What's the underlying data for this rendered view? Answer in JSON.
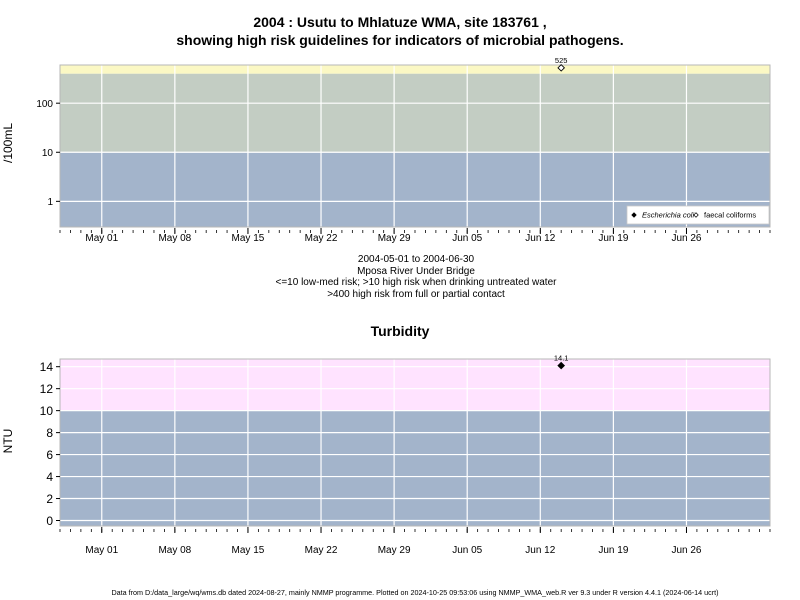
{
  "page": {
    "title_line1": "2004 : Usutu to Mhlatuze WMA, site 183761 ,",
    "title_line2": "showing high risk guidelines for indicators of microbial pathogens.",
    "caption_lines": [
      "2004-05-01 to 2004-06-30",
      "Mposa River Under Bridge",
      "<=10 low-med risk; >10 high risk when drinking untreated water",
      ">400 high risk from full or partial contact"
    ],
    "footer": "Data from D:/data_large/wq/wms.db dated 2024-08-27, mainly NMMP programme. Plotted on 2024-10-25 09:53:06 using NMMP_WMA_web.R ver 9.3 under R version 4.4.1 (2024-06-14 ucrt)"
  },
  "chart_data": [
    {
      "type": "scatter",
      "ylabel": "/100mL",
      "xlabel": "",
      "y_scale": "log10",
      "ylim": [
        0.3,
        600
      ],
      "yticks": [
        1,
        10,
        100
      ],
      "ytick_labels": [
        "1",
        "10",
        "100"
      ],
      "xlim": [
        "2004-04-27",
        "2004-07-04"
      ],
      "xticks": [
        "2004-05-01",
        "2004-05-08",
        "2004-05-15",
        "2004-05-22",
        "2004-05-29",
        "2004-06-05",
        "2004-06-12",
        "2004-06-19",
        "2004-06-26"
      ],
      "xtick_labels": [
        "May 01",
        "May 08",
        "May 15",
        "May 22",
        "May 29",
        "Jun 05",
        "Jun 12",
        "Jun 19",
        "Jun 26"
      ],
      "grid": true,
      "bands": [
        {
          "from": 0.3,
          "to": 10,
          "color": "#a3b4cb"
        },
        {
          "from": 10,
          "to": 400,
          "color": "#c3cdc3"
        },
        {
          "from": 400,
          "to": 600,
          "color": "#fbf8c4"
        }
      ],
      "series": [
        {
          "name": "Escherichia coli",
          "marker": "filled-diamond",
          "color": "#000000",
          "points": []
        },
        {
          "name": "faecal coliforms",
          "marker": "open-diamond",
          "color": "#000000",
          "points": [
            {
              "x": "2004-06-14",
              "y": 525,
              "label": "525"
            }
          ]
        }
      ],
      "legend_position": "bottom-right"
    },
    {
      "type": "scatter",
      "title": "Turbidity",
      "ylabel": "NTU",
      "xlabel": "",
      "ylim": [
        -0.5,
        14.7
      ],
      "yticks": [
        0,
        2,
        4,
        6,
        8,
        10,
        12,
        14
      ],
      "ytick_labels": [
        "0",
        "2",
        "4",
        "6",
        "8",
        "10",
        "12",
        "14"
      ],
      "xlim": [
        "2004-04-27",
        "2004-07-04"
      ],
      "xticks": [
        "2004-05-01",
        "2004-05-08",
        "2004-05-15",
        "2004-05-22",
        "2004-05-29",
        "2004-06-05",
        "2004-06-12",
        "2004-06-19",
        "2004-06-26"
      ],
      "xtick_labels": [
        "May 01",
        "May 08",
        "May 15",
        "May 22",
        "May 29",
        "Jun 05",
        "Jun 12",
        "Jun 19",
        "Jun 26"
      ],
      "grid": true,
      "bands": [
        {
          "from": -0.5,
          "to": 10,
          "color": "#a3b4cb"
        },
        {
          "from": 10,
          "to": 14.7,
          "color": "#ffe3ff"
        }
      ],
      "series": [
        {
          "marker": "filled-diamond",
          "color": "#000000",
          "points": [
            {
              "x": "2004-06-14",
              "y": 14.1,
              "label": "14.1"
            }
          ]
        }
      ]
    }
  ]
}
